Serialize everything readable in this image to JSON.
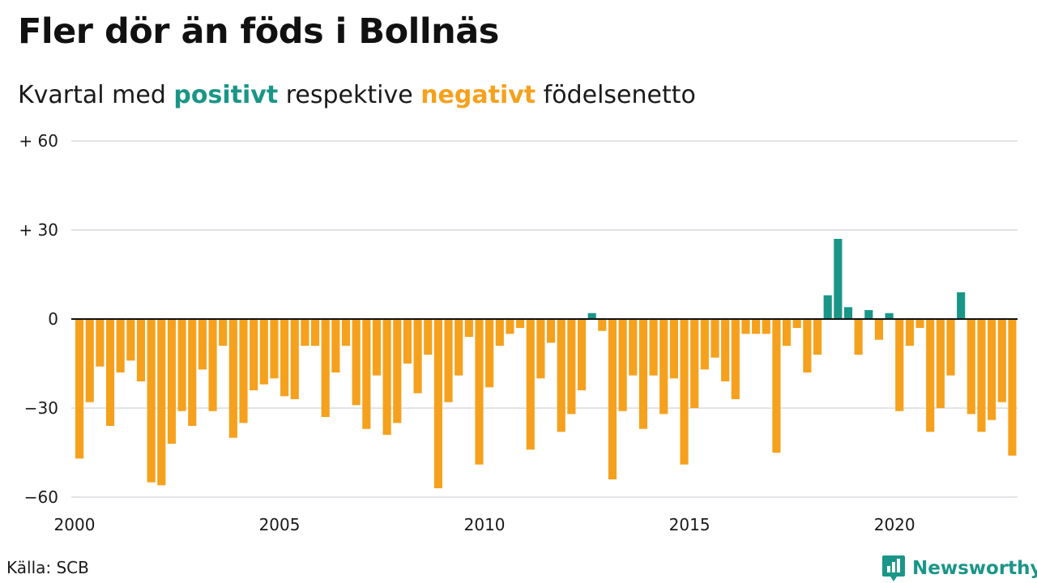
{
  "title": "Fler dör än föds i Bollnäs",
  "subtitle": {
    "before": "Kvartal med ",
    "positive": "positivt",
    "middle": " respektive ",
    "negative": "negativt",
    "after": " födelsenetto"
  },
  "source": "Källa: SCB",
  "brand": {
    "name": "Newsworthy",
    "icon": "newsworthy-chart-bubble-icon"
  },
  "colors": {
    "positive": "#1a9688",
    "negative": "#f5a11d",
    "grid": "#e3e3e8",
    "axis": "#111111"
  },
  "chart_data": {
    "type": "bar",
    "title": "Fler dör än föds i Bollnäs",
    "subtitle": "Kvartal med positivt respektive negativt födelsenetto",
    "x_start_year": 2000,
    "periods_per_year": 4,
    "x_range": [
      2000,
      2023
    ],
    "x_ticks": [
      2000,
      2005,
      2010,
      2015,
      2020
    ],
    "x_tick_labels": [
      "2000",
      "2005",
      "2010",
      "2015",
      "2020"
    ],
    "ylim": [
      -60,
      60
    ],
    "y_ticks": [
      60,
      30,
      0,
      -30,
      -60
    ],
    "y_tick_labels": [
      "+ 60",
      "+ 30",
      "0",
      "−30",
      "−60"
    ],
    "grid": true,
    "values": [
      -47,
      -28,
      -16,
      -36,
      -18,
      -14,
      -21,
      -55,
      -56,
      -42,
      -31,
      -36,
      -17,
      -31,
      -9,
      -40,
      -35,
      -24,
      -22,
      -20,
      -26,
      -27,
      -9,
      -9,
      -33,
      -18,
      -9,
      -29,
      -37,
      -19,
      -39,
      -35,
      -15,
      -25,
      -12,
      -57,
      -28,
      -19,
      -6,
      -49,
      -23,
      -9,
      -5,
      -3,
      -44,
      -20,
      -8,
      -38,
      -32,
      -24,
      2,
      -4,
      -54,
      -31,
      -19,
      -37,
      -19,
      -32,
      -20,
      -49,
      -30,
      -17,
      -13,
      -21,
      -27,
      -5,
      -5,
      -5,
      -45,
      -9,
      -3,
      -18,
      -12,
      8,
      27,
      4,
      -12,
      3,
      -7,
      2,
      -31,
      -9,
      -3,
      -38,
      -30,
      -19,
      9,
      -32,
      -38,
      -34,
      -28,
      -46
    ]
  }
}
